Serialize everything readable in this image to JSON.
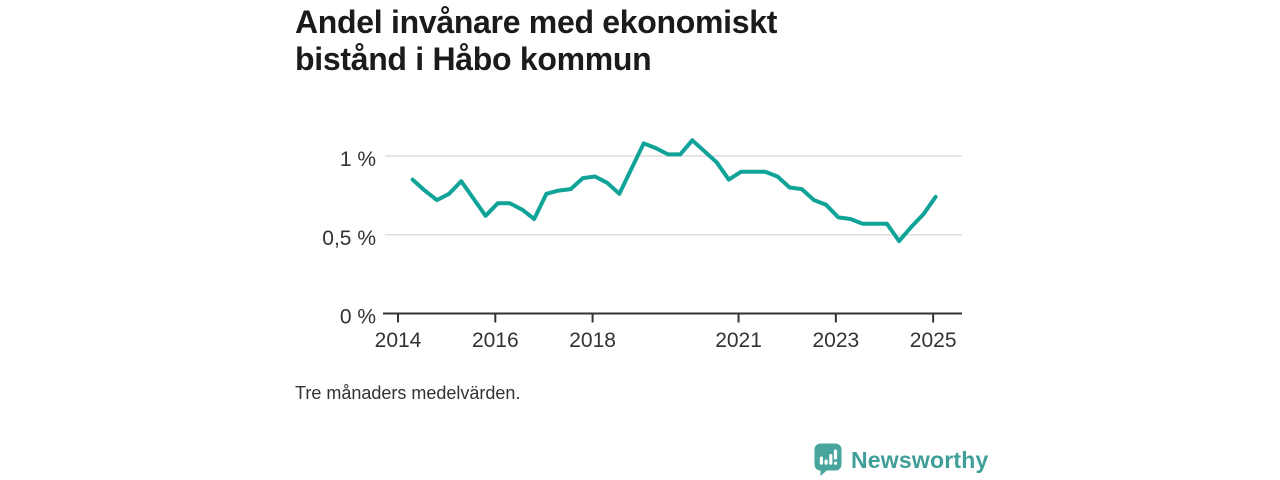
{
  "header": {
    "title_line1": "Andel invånare med ekonomiskt",
    "title_line2": "bistånd i Håbo kommun"
  },
  "footnote": {
    "text": "Tre månaders medelvärden."
  },
  "brand": {
    "wordmark": "Newsworthy",
    "icon": "newsworthy-speech-bubble-bar-chart-icon"
  },
  "colors": {
    "background": "#ffffff",
    "title_text": "#1b1b1b",
    "axis_text": "#333333",
    "axis_line": "#333333",
    "gridline": "#dedede",
    "series_line": "#10a398",
    "brand_teal": "#3f9e98",
    "brand_bubble": "#48a59d"
  },
  "chart_data": {
    "type": "line",
    "title": "Andel invånare med ekonomiskt bistånd i Håbo kommun",
    "note": "Tre månaders medelvärden.",
    "xlabel": "",
    "ylabel": "",
    "unit": "%",
    "decimal_style": "comma",
    "grid": "horizontal-only",
    "legend": "none",
    "xlim": [
      2013.7,
      2025.6
    ],
    "ylim": [
      0,
      1.2
    ],
    "yticks": [
      {
        "value": 0,
        "label": "0 %"
      },
      {
        "value": 0.5,
        "label": "0,5 %"
      },
      {
        "value": 1,
        "label": "1 %"
      }
    ],
    "xticks": [
      {
        "value": 2014,
        "label": "2014"
      },
      {
        "value": 2016,
        "label": "2016"
      },
      {
        "value": 2018,
        "label": "2018"
      },
      {
        "value": 2021,
        "label": "2021"
      },
      {
        "value": 2023,
        "label": "2023"
      },
      {
        "value": 2025,
        "label": "2025"
      }
    ],
    "series": [
      {
        "name": "Andel invånare med ekonomiskt bistånd i Håbo kommun",
        "x": [
          2014.3,
          2014.55,
          2014.8,
          2015.05,
          2015.3,
          2015.55,
          2015.8,
          2016.05,
          2016.3,
          2016.55,
          2016.8,
          2017.05,
          2017.3,
          2017.55,
          2017.8,
          2018.05,
          2018.3,
          2018.55,
          2018.8,
          2019.05,
          2019.3,
          2019.55,
          2019.8,
          2020.05,
          2020.3,
          2020.55,
          2020.8,
          2021.05,
          2021.3,
          2021.55,
          2021.8,
          2022.05,
          2022.3,
          2022.55,
          2022.8,
          2023.05,
          2023.3,
          2023.55,
          2023.8,
          2024.05,
          2024.3,
          2024.55,
          2024.8,
          2025.05
        ],
        "values": [
          0.85,
          0.78,
          0.72,
          0.76,
          0.84,
          0.73,
          0.62,
          0.7,
          0.7,
          0.66,
          0.6,
          0.76,
          0.78,
          0.79,
          0.86,
          0.87,
          0.83,
          0.76,
          0.92,
          1.08,
          1.05,
          1.01,
          1.01,
          1.1,
          1.03,
          0.96,
          0.85,
          0.9,
          0.9,
          0.9,
          0.87,
          0.8,
          0.79,
          0.72,
          0.69,
          0.61,
          0.6,
          0.57,
          0.57,
          0.57,
          0.46,
          0.55,
          0.63,
          0.74
        ]
      }
    ]
  }
}
